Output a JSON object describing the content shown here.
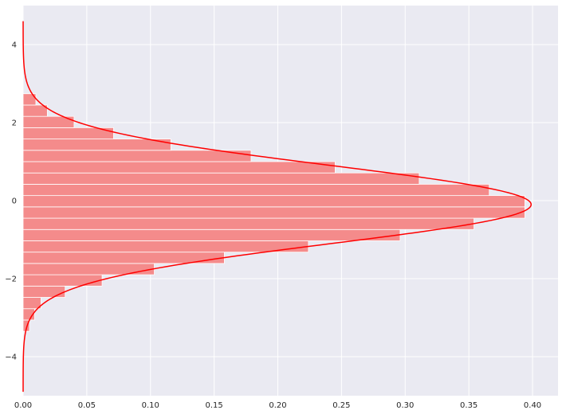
{
  "chart_data": {
    "type": "bar",
    "orientation": "horizontal",
    "title": "",
    "xlabel": "",
    "ylabel": "",
    "xlim": [
      0.0,
      0.42
    ],
    "ylim": [
      -5.0,
      5.0
    ],
    "grid": true,
    "x_ticks": [
      "0.00",
      "0.05",
      "0.10",
      "0.15",
      "0.20",
      "0.25",
      "0.30",
      "0.35",
      "0.40"
    ],
    "y_ticks": [
      "4",
      "2",
      "0",
      "−2",
      "−4"
    ],
    "histogram": {
      "bins": [
        {
          "y0": -3.35,
          "y1": -3.06,
          "density": 0.005
        },
        {
          "y0": -3.06,
          "y1": -2.77,
          "density": 0.009
        },
        {
          "y0": -2.77,
          "y1": -2.48,
          "density": 0.014
        },
        {
          "y0": -2.48,
          "y1": -2.19,
          "density": 0.033
        },
        {
          "y0": -2.19,
          "y1": -1.9,
          "density": 0.062
        },
        {
          "y0": -1.9,
          "y1": -1.61,
          "density": 0.103
        },
        {
          "y0": -1.61,
          "y1": -1.32,
          "density": 0.158
        },
        {
          "y0": -1.32,
          "y1": -1.03,
          "density": 0.224
        },
        {
          "y0": -1.03,
          "y1": -0.74,
          "density": 0.296
        },
        {
          "y0": -0.74,
          "y1": -0.45,
          "density": 0.354
        },
        {
          "y0": -0.45,
          "y1": -0.16,
          "density": 0.394
        },
        {
          "y0": -0.16,
          "y1": 0.13,
          "density": 0.394
        },
        {
          "y0": 0.13,
          "y1": 0.42,
          "density": 0.366
        },
        {
          "y0": 0.42,
          "y1": 0.71,
          "density": 0.311
        },
        {
          "y0": 0.71,
          "y1": 1.0,
          "density": 0.245
        },
        {
          "y0": 1.0,
          "y1": 1.29,
          "density": 0.179
        },
        {
          "y0": 1.29,
          "y1": 1.58,
          "density": 0.116
        },
        {
          "y0": 1.58,
          "y1": 1.87,
          "density": 0.071
        },
        {
          "y0": 1.87,
          "y1": 2.16,
          "density": 0.04
        },
        {
          "y0": 2.16,
          "y1": 2.45,
          "density": 0.019
        },
        {
          "y0": 2.45,
          "y1": 2.74,
          "density": 0.01
        }
      ]
    },
    "kde": {
      "mean": -0.1,
      "sd": 1.0,
      "y_range": [
        -4.9,
        4.6
      ]
    },
    "colors": {
      "bar": "#f48b8b",
      "bar_edge": "#ffffff",
      "kde_line": "#ff0000",
      "background": "#eaeaf2",
      "grid": "#ffffff",
      "tick_text": "#262626"
    }
  }
}
